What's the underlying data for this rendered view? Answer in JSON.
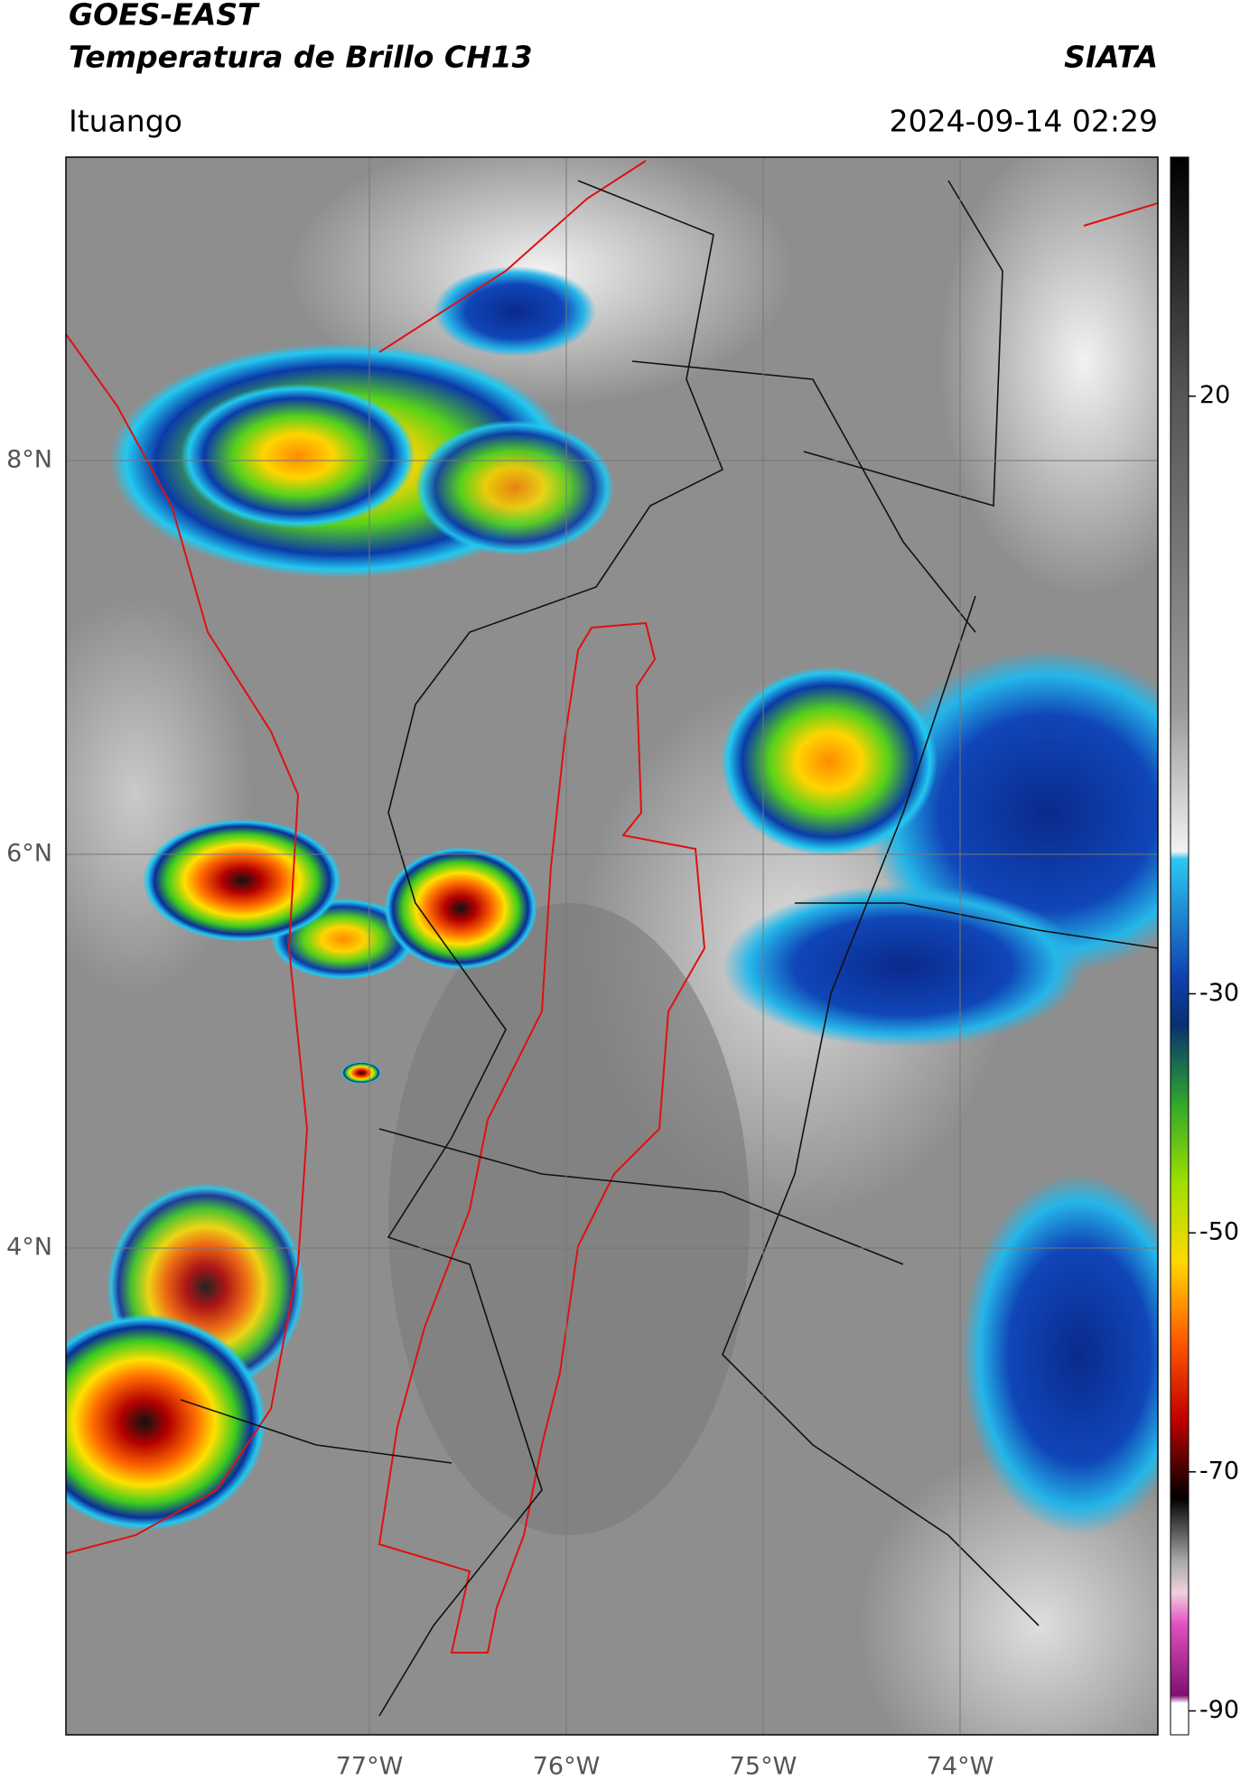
{
  "header": {
    "satellite": "GOES-EAST",
    "product": "Temperatura de Brillo CH13",
    "agency": "SIATA",
    "region": "Ituango",
    "timestamp": "2024-09-14 02:29"
  },
  "map": {
    "lat_labels": [
      "8°N",
      "6°N",
      "4°N"
    ],
    "lon_labels": [
      "77°W",
      "76°W",
      "75°W",
      "74°W"
    ]
  },
  "colorbar": {
    "range": [
      -92,
      40
    ],
    "ticks": [
      20,
      -30,
      -50,
      -70,
      -90
    ]
  }
}
